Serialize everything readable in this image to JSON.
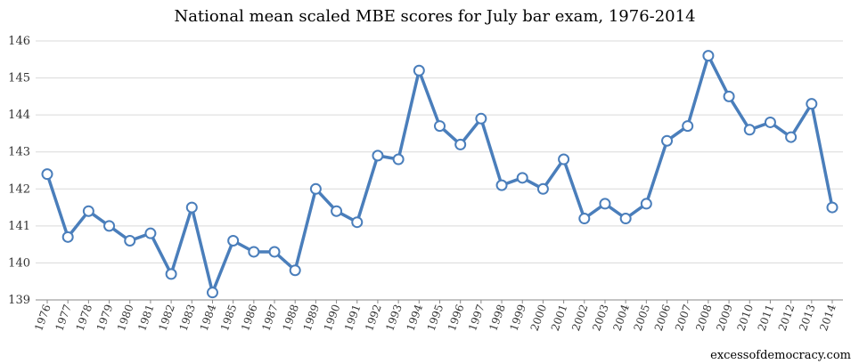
{
  "chart_data": {
    "type": "line",
    "title": "National mean scaled MBE scores for July bar exam, 1976-2014",
    "xlabel": "",
    "ylabel": "",
    "ylim": [
      139,
      146
    ],
    "yticks": [
      139,
      140,
      141,
      142,
      143,
      144,
      145,
      146
    ],
    "grid": "horizontal",
    "legend": "none",
    "categories": [
      "1976",
      "1977",
      "1978",
      "1979",
      "1980",
      "1981",
      "1982",
      "1983",
      "1984",
      "1985",
      "1986",
      "1987",
      "1988",
      "1989",
      "1990",
      "1991",
      "1992",
      "1993",
      "1994",
      "1995",
      "1996",
      "1997",
      "1998",
      "1999",
      "2000",
      "2001",
      "2002",
      "2003",
      "2004",
      "2005",
      "2006",
      "2007",
      "2008",
      "2009",
      "2010",
      "2011",
      "2012",
      "2013",
      "2014"
    ],
    "series": [
      {
        "values": [
          142.4,
          140.7,
          141.4,
          141.0,
          140.6,
          140.8,
          139.7,
          141.5,
          139.2,
          140.6,
          140.3,
          140.3,
          139.8,
          142.0,
          141.4,
          141.1,
          142.9,
          142.8,
          145.2,
          143.7,
          143.2,
          143.9,
          142.1,
          142.3,
          142.0,
          142.8,
          141.2,
          141.6,
          141.2,
          141.6,
          143.3,
          143.7,
          145.6,
          144.5,
          143.6,
          143.8,
          143.4,
          144.3,
          141.5
        ]
      }
    ],
    "line_color": "#4a7ebb",
    "marker_fill": "#ffffff",
    "source_text": "excessofdemocracy.com"
  }
}
